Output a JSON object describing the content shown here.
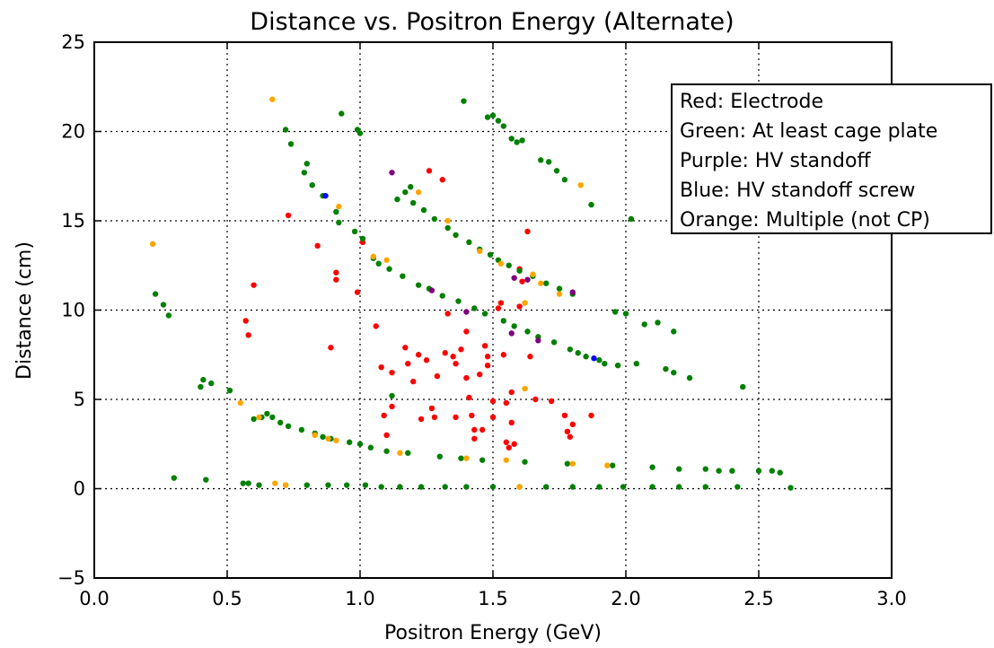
{
  "chart_data": {
    "type": "scatter",
    "title": "Distance vs. Positron Energy (Alternate)",
    "xlabel": "Positron Energy (GeV)",
    "ylabel": "Distance (cm)",
    "xlim": [
      0.0,
      3.0
    ],
    "ylim": [
      -5,
      25
    ],
    "xticks": [
      "0.0",
      "0.5",
      "1.0",
      "1.5",
      "2.0",
      "2.5",
      "3.0"
    ],
    "yticks": [
      "−5",
      "0",
      "5",
      "10",
      "15",
      "20",
      "25"
    ],
    "xtick_values": [
      0.0,
      0.5,
      1.0,
      1.5,
      2.0,
      2.5,
      3.0
    ],
    "ytick_values": [
      -5,
      0,
      5,
      10,
      15,
      20,
      25
    ],
    "grid": true,
    "legend_position": "top-right",
    "legend": [
      "Red: Electrode",
      "Green: At least cage plate",
      "Purple: HV standoff",
      "Blue: HV standoff screw",
      "Orange: Multiple (not CP)"
    ],
    "series": [
      {
        "name": "Electrode",
        "color": "#ff0000",
        "points": [
          [
            0.57,
            9.4
          ],
          [
            0.58,
            8.6
          ],
          [
            0.6,
            11.4
          ],
          [
            0.73,
            15.3
          ],
          [
            0.84,
            13.6
          ],
          [
            0.89,
            7.9
          ],
          [
            0.91,
            12.1
          ],
          [
            0.91,
            11.7
          ],
          [
            0.99,
            11.0
          ],
          [
            1.01,
            13.8
          ],
          [
            1.06,
            9.1
          ],
          [
            1.08,
            6.8
          ],
          [
            1.09,
            4.1
          ],
          [
            1.1,
            3.0
          ],
          [
            1.12,
            6.5
          ],
          [
            1.12,
            4.6
          ],
          [
            1.17,
            7.9
          ],
          [
            1.18,
            7.0
          ],
          [
            1.2,
            6.0
          ],
          [
            1.22,
            7.5
          ],
          [
            1.23,
            3.9
          ],
          [
            1.25,
            7.2
          ],
          [
            1.26,
            17.8
          ],
          [
            1.27,
            4.5
          ],
          [
            1.28,
            4.0
          ],
          [
            1.29,
            6.3
          ],
          [
            1.31,
            17.3
          ],
          [
            1.32,
            7.6
          ],
          [
            1.33,
            9.8
          ],
          [
            1.35,
            7.4
          ],
          [
            1.36,
            7.0
          ],
          [
            1.36,
            4.0
          ],
          [
            1.38,
            7.8
          ],
          [
            1.4,
            8.8
          ],
          [
            1.4,
            6.2
          ],
          [
            1.41,
            5.1
          ],
          [
            1.42,
            4.1
          ],
          [
            1.43,
            3.3
          ],
          [
            1.43,
            2.8
          ],
          [
            1.45,
            6.4
          ],
          [
            1.46,
            3.3
          ],
          [
            1.47,
            8.0
          ],
          [
            1.48,
            7.4
          ],
          [
            1.48,
            6.9
          ],
          [
            1.5,
            4.9
          ],
          [
            1.5,
            4.0
          ],
          [
            1.52,
            10.1
          ],
          [
            1.53,
            10.4
          ],
          [
            1.54,
            7.5
          ],
          [
            1.55,
            4.8
          ],
          [
            1.55,
            2.6
          ],
          [
            1.56,
            2.3
          ],
          [
            1.57,
            5.4
          ],
          [
            1.57,
            3.7
          ],
          [
            1.58,
            2.5
          ],
          [
            1.6,
            12.3
          ],
          [
            1.6,
            10.2
          ],
          [
            1.61,
            11.6
          ],
          [
            1.63,
            14.4
          ],
          [
            1.64,
            7.4
          ],
          [
            1.66,
            5.0
          ],
          [
            1.72,
            4.9
          ],
          [
            1.77,
            4.1
          ],
          [
            1.78,
            3.2
          ],
          [
            1.79,
            2.9
          ],
          [
            1.8,
            3.6
          ],
          [
            1.87,
            4.1
          ]
        ]
      },
      {
        "name": "At least cage plate",
        "color": "#008000",
        "points": [
          [
            0.23,
            10.9
          ],
          [
            0.26,
            10.3
          ],
          [
            0.28,
            9.7
          ],
          [
            0.3,
            0.6
          ],
          [
            0.4,
            5.7
          ],
          [
            0.41,
            6.1
          ],
          [
            0.42,
            0.5
          ],
          [
            0.44,
            5.9
          ],
          [
            0.51,
            5.5
          ],
          [
            0.56,
            0.3
          ],
          [
            0.58,
            0.3
          ],
          [
            0.6,
            3.9
          ],
          [
            0.62,
            0.2
          ],
          [
            0.63,
            4.0
          ],
          [
            0.65,
            4.2
          ],
          [
            0.67,
            4.0
          ],
          [
            0.7,
            3.7
          ],
          [
            0.72,
            20.1
          ],
          [
            0.72,
            0.2
          ],
          [
            0.73,
            3.5
          ],
          [
            0.74,
            19.3
          ],
          [
            0.78,
            3.3
          ],
          [
            0.79,
            17.7
          ],
          [
            0.8,
            18.2
          ],
          [
            0.8,
            0.2
          ],
          [
            0.82,
            17.0
          ],
          [
            0.83,
            3.1
          ],
          [
            0.86,
            2.9
          ],
          [
            0.86,
            16.4
          ],
          [
            0.88,
            0.2
          ],
          [
            0.89,
            2.8
          ],
          [
            0.91,
            15.5
          ],
          [
            0.92,
            14.9
          ],
          [
            0.93,
            21.0
          ],
          [
            0.95,
            0.2
          ],
          [
            0.96,
            2.6
          ],
          [
            0.98,
            14.4
          ],
          [
            0.99,
            20.1
          ],
          [
            1.0,
            19.9
          ],
          [
            1.0,
            2.5
          ],
          [
            1.01,
            14.0
          ],
          [
            1.02,
            0.2
          ],
          [
            1.04,
            2.3
          ],
          [
            1.05,
            12.9
          ],
          [
            1.07,
            12.6
          ],
          [
            1.08,
            0.1
          ],
          [
            1.1,
            2.1
          ],
          [
            1.11,
            12.3
          ],
          [
            1.12,
            5.2
          ],
          [
            1.14,
            16.2
          ],
          [
            1.15,
            0.1
          ],
          [
            1.16,
            11.9
          ],
          [
            1.17,
            16.6
          ],
          [
            1.18,
            2.0
          ],
          [
            1.19,
            16.9
          ],
          [
            1.2,
            16.0
          ],
          [
            1.22,
            11.4
          ],
          [
            1.23,
            0.1
          ],
          [
            1.24,
            15.6
          ],
          [
            1.26,
            11.2
          ],
          [
            1.28,
            15.1
          ],
          [
            1.3,
            1.8
          ],
          [
            1.31,
            10.8
          ],
          [
            1.32,
            0.1
          ],
          [
            1.33,
            14.6
          ],
          [
            1.36,
            14.2
          ],
          [
            1.37,
            10.5
          ],
          [
            1.38,
            1.7
          ],
          [
            1.39,
            21.7
          ],
          [
            1.4,
            0.1
          ],
          [
            1.41,
            13.8
          ],
          [
            1.43,
            10.1
          ],
          [
            1.45,
            13.4
          ],
          [
            1.46,
            1.6
          ],
          [
            1.47,
            9.8
          ],
          [
            1.48,
            20.8
          ],
          [
            1.49,
            13.1
          ],
          [
            1.5,
            20.9
          ],
          [
            1.5,
            0.1
          ],
          [
            1.52,
            12.8
          ],
          [
            1.52,
            20.6
          ],
          [
            1.54,
            9.4
          ],
          [
            1.54,
            20.3
          ],
          [
            1.56,
            12.5
          ],
          [
            1.57,
            19.6
          ],
          [
            1.58,
            9.1
          ],
          [
            1.59,
            19.4
          ],
          [
            1.6,
            12.2
          ],
          [
            1.6,
            0.1
          ],
          [
            1.61,
            19.5
          ],
          [
            1.62,
            1.5
          ],
          [
            1.63,
            8.8
          ],
          [
            1.65,
            11.9
          ],
          [
            1.67,
            8.5
          ],
          [
            1.68,
            18.4
          ],
          [
            1.7,
            11.5
          ],
          [
            1.7,
            0.1
          ],
          [
            1.71,
            18.3
          ],
          [
            1.73,
            8.2
          ],
          [
            1.74,
            17.8
          ],
          [
            1.75,
            11.2
          ],
          [
            1.77,
            17.3
          ],
          [
            1.78,
            1.4
          ],
          [
            1.79,
            7.8
          ],
          [
            1.8,
            10.9
          ],
          [
            1.8,
            0.1
          ],
          [
            1.82,
            7.6
          ],
          [
            1.85,
            7.4
          ],
          [
            1.87,
            15.9
          ],
          [
            1.9,
            0.1
          ],
          [
            1.9,
            7.2
          ],
          [
            1.92,
            7.0
          ],
          [
            1.95,
            1.3
          ],
          [
            1.96,
            9.9
          ],
          [
            1.97,
            6.9
          ],
          [
            1.99,
            0.1
          ],
          [
            2.0,
            9.8
          ],
          [
            2.02,
            15.1
          ],
          [
            2.04,
            7.0
          ],
          [
            2.07,
            9.2
          ],
          [
            2.1,
            1.2
          ],
          [
            2.1,
            0.1
          ],
          [
            2.12,
            9.3
          ],
          [
            2.15,
            6.7
          ],
          [
            2.18,
            6.5
          ],
          [
            2.18,
            8.8
          ],
          [
            2.2,
            1.1
          ],
          [
            2.2,
            0.1
          ],
          [
            2.24,
            6.2
          ],
          [
            2.3,
            1.1
          ],
          [
            2.3,
            0.1
          ],
          [
            2.35,
            1.0
          ],
          [
            2.4,
            1.0
          ],
          [
            2.42,
            0.1
          ],
          [
            2.44,
            5.7
          ],
          [
            2.5,
            1.0
          ],
          [
            2.55,
            1.0
          ],
          [
            2.58,
            0.9
          ],
          [
            2.62,
            0.05
          ]
        ]
      },
      {
        "name": "HV standoff",
        "color": "#800080",
        "points": [
          [
            1.12,
            17.7
          ],
          [
            1.27,
            11.1
          ],
          [
            1.4,
            9.9
          ],
          [
            1.57,
            8.7
          ],
          [
            1.58,
            11.8
          ],
          [
            1.63,
            11.7
          ],
          [
            1.67,
            8.3
          ],
          [
            1.8,
            11.0
          ]
        ]
      },
      {
        "name": "HV standoff screw",
        "color": "#0000ff",
        "points": [
          [
            0.87,
            16.4
          ],
          [
            1.88,
            7.3
          ]
        ]
      },
      {
        "name": "Multiple (not CP)",
        "color": "#ffa500",
        "points": [
          [
            0.22,
            13.7
          ],
          [
            0.55,
            4.8
          ],
          [
            0.62,
            4.0
          ],
          [
            0.67,
            21.8
          ],
          [
            0.68,
            0.3
          ],
          [
            0.72,
            0.2
          ],
          [
            0.83,
            3.0
          ],
          [
            0.88,
            2.8
          ],
          [
            0.91,
            2.7
          ],
          [
            0.92,
            15.8
          ],
          [
            1.05,
            13.0
          ],
          [
            1.1,
            12.8
          ],
          [
            1.15,
            2.0
          ],
          [
            1.22,
            16.6
          ],
          [
            1.33,
            15.0
          ],
          [
            1.4,
            1.7
          ],
          [
            1.45,
            13.3
          ],
          [
            1.53,
            12.6
          ],
          [
            1.55,
            1.6
          ],
          [
            1.62,
            10.4
          ],
          [
            1.62,
            5.6
          ],
          [
            1.6,
            0.1
          ],
          [
            1.65,
            12.0
          ],
          [
            1.68,
            11.5
          ],
          [
            1.75,
            10.9
          ],
          [
            1.8,
            1.4
          ],
          [
            1.83,
            17.0
          ],
          [
            1.93,
            1.3
          ]
        ]
      }
    ]
  }
}
